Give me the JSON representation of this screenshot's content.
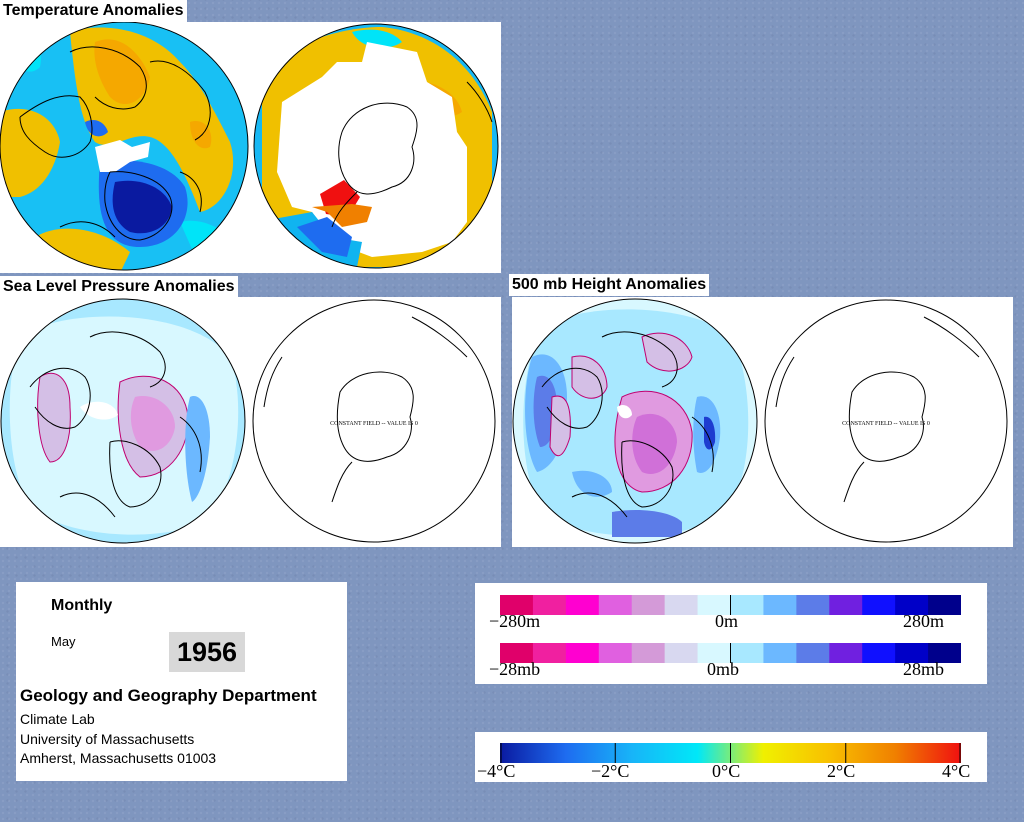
{
  "panels": {
    "temperature": {
      "title": "Temperature Anomalies"
    },
    "slp": {
      "title": "Sea Level Pressure Anomalies",
      "south_note": "CONSTANT FIELD -- VALUE IS 0"
    },
    "h500": {
      "title": "500 mb Height Anomalies",
      "south_note": "CONSTANT FIELD -- VALUE IS 0"
    }
  },
  "info": {
    "period": "Monthly",
    "month": "May",
    "year": "1956",
    "department": "Geology and Geography Department",
    "lines": [
      "Climate Lab",
      "University of Massachusetts",
      "Amherst, Massachusetts 01003"
    ]
  },
  "legends": {
    "height": {
      "labels": [
        "−280m",
        "0m",
        "280m"
      ],
      "colors": [
        "#e0006a",
        "#f020a0",
        "#ff00d0",
        "#e060e0",
        "#d49ad8",
        "#d8d8f0",
        "#d8f8ff",
        "#a8e8ff",
        "#6cb8ff",
        "#5c7ce8",
        "#7020e0",
        "#1010ff",
        "#0000c8",
        "#00008c"
      ]
    },
    "pressure": {
      "labels": [
        "−28mb",
        "0mb",
        "28mb"
      ],
      "colors": [
        "#e0006a",
        "#f020a0",
        "#ff00d0",
        "#e060e0",
        "#d49ad8",
        "#d8d8f0",
        "#d8f8ff",
        "#a8e8ff",
        "#6cb8ff",
        "#5c7ce8",
        "#7020e0",
        "#1010ff",
        "#0000c8",
        "#00008c"
      ]
    },
    "temperature": {
      "labels": [
        "−4°C",
        "−2°C",
        "0°C",
        "2°C",
        "4°C"
      ],
      "gradient": [
        "#0a1aa0",
        "#1e6cf0",
        "#18b4f8",
        "#00e8f8",
        "#f0f000",
        "#f8c000",
        "#f08000",
        "#f01010"
      ]
    }
  }
}
